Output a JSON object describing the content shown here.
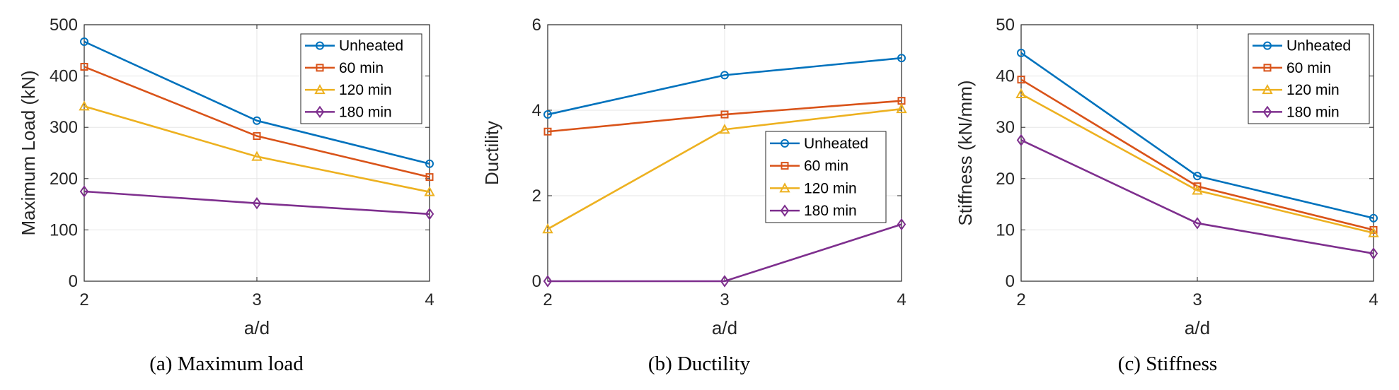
{
  "chart_data": [
    {
      "type": "line",
      "caption": "(a) Maximum load",
      "xlabel": "a/d",
      "ylabel": "Maximum Load (kN)",
      "x": [
        2,
        3,
        4
      ],
      "xlim": [
        2,
        4
      ],
      "ylim": [
        0,
        500
      ],
      "xticks": [
        "2",
        "3",
        "4"
      ],
      "yticks": [
        "0",
        "100",
        "200",
        "300",
        "400",
        "500"
      ],
      "grid": true,
      "legend_position": "top-right",
      "series": [
        {
          "name": "Unheated",
          "values": [
            467,
            313,
            229
          ]
        },
        {
          "name": "60 min",
          "values": [
            418,
            283,
            203
          ]
        },
        {
          "name": "120 min",
          "values": [
            341,
            243,
            174
          ]
        },
        {
          "name": "180 min",
          "values": [
            175,
            152,
            131
          ]
        }
      ]
    },
    {
      "type": "line",
      "caption": "(b) Ductility",
      "xlabel": "a/d",
      "ylabel": "Ductility",
      "x": [
        2,
        3,
        4
      ],
      "xlim": [
        2,
        4
      ],
      "ylim": [
        0,
        6
      ],
      "xticks": [
        "2",
        "3",
        "4"
      ],
      "yticks": [
        "0",
        "2",
        "4",
        "6"
      ],
      "grid": true,
      "legend_position": "center-right",
      "series": [
        {
          "name": "Unheated",
          "values": [
            3.9,
            4.82,
            5.22
          ]
        },
        {
          "name": "60 min",
          "values": [
            3.5,
            3.9,
            4.22
          ]
        },
        {
          "name": "120 min",
          "values": [
            1.22,
            3.55,
            4.03
          ]
        },
        {
          "name": "180 min",
          "values": [
            0,
            0,
            1.33
          ]
        }
      ]
    },
    {
      "type": "line",
      "caption": "(c) Stiffness",
      "xlabel": "a/d",
      "ylabel": "Stiffness (kN/mm)",
      "x": [
        2,
        3,
        4
      ],
      "xlim": [
        2,
        4
      ],
      "ylim": [
        0,
        50
      ],
      "xticks": [
        "2",
        "3",
        "4"
      ],
      "yticks": [
        "0",
        "10",
        "20",
        "30",
        "40",
        "50"
      ],
      "grid": true,
      "legend_position": "top-right",
      "series": [
        {
          "name": "Unheated",
          "values": [
            44.5,
            20.5,
            12.3
          ]
        },
        {
          "name": "60 min",
          "values": [
            39.3,
            18.5,
            10.0
          ]
        },
        {
          "name": "120 min",
          "values": [
            36.5,
            17.7,
            9.4
          ]
        },
        {
          "name": "180 min",
          "values": [
            27.5,
            11.3,
            5.4
          ]
        }
      ]
    }
  ],
  "series_colors": [
    "#0072BD",
    "#D95319",
    "#EDB120",
    "#7E2F8E"
  ],
  "series_markers": [
    "circle",
    "square",
    "triangle",
    "diamond"
  ]
}
